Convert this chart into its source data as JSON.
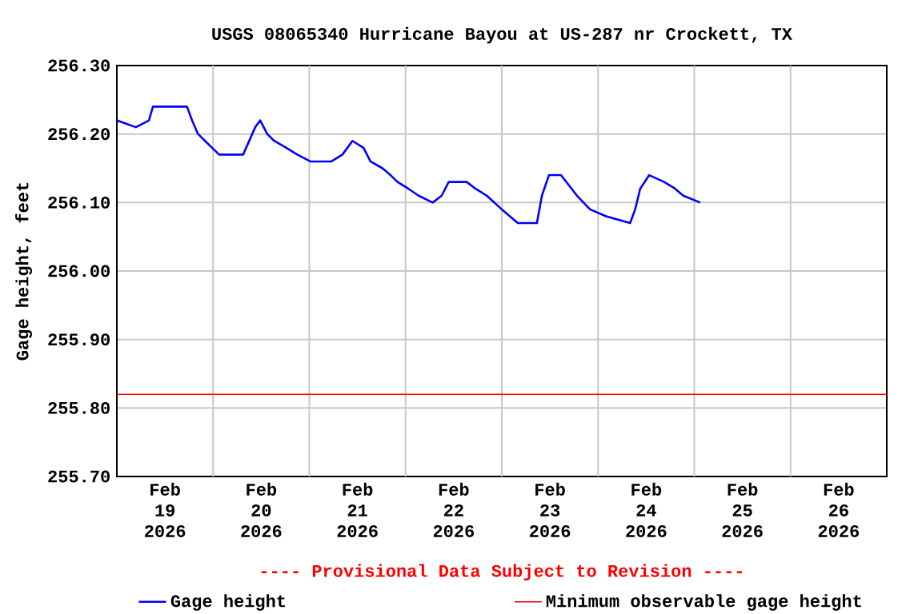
{
  "chart_data": {
    "type": "line",
    "title": "USGS 08065340 Hurricane Bayou at US-287 nr Crockett, TX",
    "ylabel": "Gage height, feet",
    "annotations": [
      "---- Provisional Data Subject to Revision ----"
    ],
    "x": [
      "2026-02-19T00:00",
      "2026-02-19T04:45",
      "2026-02-19T08:00",
      "2026-02-19T09:00",
      "2026-02-19T17:30",
      "2026-02-19T18:45",
      "2026-02-19T20:15",
      "2026-02-19T22:00",
      "2026-02-19T23:45",
      "2026-02-20T01:30",
      "2026-02-20T07:30",
      "2026-02-20T09:00",
      "2026-02-20T10:30",
      "2026-02-20T11:45",
      "2026-02-20T13:30",
      "2026-02-20T15:15",
      "2026-02-20T18:15",
      "2026-02-20T21:00",
      "2026-02-21T00:15",
      "2026-02-21T05:30",
      "2026-02-21T08:15",
      "2026-02-21T10:45",
      "2026-02-21T13:30",
      "2026-02-21T15:15",
      "2026-02-21T18:15",
      "2026-02-21T20:15",
      "2026-02-21T22:00",
      "2026-02-22T00:45",
      "2026-02-22T03:15",
      "2026-02-22T06:45",
      "2026-02-22T09:00",
      "2026-02-22T10:45",
      "2026-02-22T15:15",
      "2026-02-22T17:30",
      "2026-02-22T20:15",
      "2026-02-23T00:00",
      "2026-02-23T02:00",
      "2026-02-23T04:00",
      "2026-02-23T08:45",
      "2026-02-23T10:00",
      "2026-02-23T11:45",
      "2026-02-23T14:45",
      "2026-02-23T18:45",
      "2026-02-23T22:00",
      "2026-02-24T02:00",
      "2026-02-24T08:00",
      "2026-02-24T09:15",
      "2026-02-24T10:30",
      "2026-02-24T12:45",
      "2026-02-24T16:30",
      "2026-02-24T19:15",
      "2026-02-24T21:15",
      "2026-02-25T01:30"
    ],
    "series": [
      {
        "name": "Gage height",
        "color": "#0000ff",
        "values": [
          256.22,
          256.21,
          256.22,
          256.24,
          256.24,
          256.22,
          256.2,
          256.19,
          256.18,
          256.17,
          256.17,
          256.19,
          256.21,
          256.22,
          256.2,
          256.19,
          256.18,
          256.17,
          256.16,
          256.16,
          256.17,
          256.19,
          256.18,
          256.16,
          256.15,
          256.14,
          256.13,
          256.12,
          256.11,
          256.1,
          256.11,
          256.13,
          256.13,
          256.12,
          256.11,
          256.09,
          256.08,
          256.07,
          256.07,
          256.11,
          256.14,
          256.14,
          256.11,
          256.09,
          256.08,
          256.07,
          256.09,
          256.12,
          256.14,
          256.13,
          256.12,
          256.11,
          256.1
        ]
      }
    ],
    "ref_lines": [
      {
        "axis": "y",
        "value": 255.82,
        "label": "Minimum observable gage height",
        "color": "#ff0000"
      }
    ],
    "xlim": [
      "2026-02-19T00:00",
      "2026-02-27T00:00"
    ],
    "xticks": [
      {
        "value": "2026-02-19T12:00",
        "label": "Feb 19 2026"
      },
      {
        "value": "2026-02-20T12:00",
        "label": "Feb 20 2026"
      },
      {
        "value": "2026-02-21T12:00",
        "label": "Feb 21 2026"
      },
      {
        "value": "2026-02-22T12:00",
        "label": "Feb 22 2026"
      },
      {
        "value": "2026-02-23T12:00",
        "label": "Feb 23 2026"
      },
      {
        "value": "2026-02-24T12:00",
        "label": "Feb 24 2026"
      },
      {
        "value": "2026-02-25T12:00",
        "label": "Feb 25 2026"
      },
      {
        "value": "2026-02-26T12:00",
        "label": "Feb 26 2026"
      },
      {
        "value": "2026-02-20T00:00",
        "label": null
      },
      {
        "value": "2026-02-21T00:00",
        "label": null
      },
      {
        "value": "2026-02-22T00:00",
        "label": null
      },
      {
        "value": "2026-02-23T00:00",
        "label": null
      },
      {
        "value": "2026-02-24T00:00",
        "label": null
      },
      {
        "value": "2026-02-25T00:00",
        "label": null
      },
      {
        "value": "2026-02-26T00:00",
        "label": null
      }
    ],
    "ylim": [
      255.7,
      256.3
    ],
    "yticks": [
      {
        "value": 255.7,
        "label": "255.70"
      },
      {
        "value": 255.8,
        "label": "255.80"
      },
      {
        "value": 255.9,
        "label": "255.90"
      },
      {
        "value": 256.0,
        "label": "256.00"
      },
      {
        "value": 256.1,
        "label": "256.10"
      },
      {
        "value": 256.2,
        "label": "256.20"
      },
      {
        "value": 256.3,
        "label": "256.30"
      }
    ],
    "grid": true,
    "legend": "bottom",
    "marker": "none",
    "line_style": "solid"
  }
}
